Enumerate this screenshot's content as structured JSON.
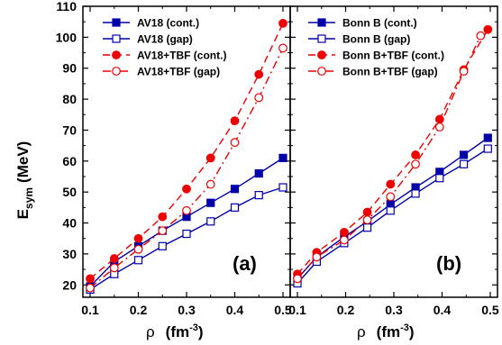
{
  "chart_data": [
    {
      "type": "line",
      "panel_tag": "(a)",
      "ylabel_main": "E",
      "ylabel_sub": "sym",
      "ylabel_unit": "(MeV)",
      "xlabel_symbol": "ρ",
      "xlabel_unit": "(fm",
      "xlabel_exp": "-3",
      "xlabel_close": ")",
      "xlim": [
        0.085,
        0.515
      ],
      "ylim": [
        16,
        110
      ],
      "xticks": [
        0.1,
        0.2,
        0.3,
        0.4,
        0.5
      ],
      "xtick_labels": [
        "0.1",
        "0.2",
        "0.3",
        "0.4",
        "0.5"
      ],
      "yticks": [
        20,
        30,
        40,
        50,
        60,
        70,
        80,
        90,
        100,
        110
      ],
      "ytick_labels": [
        "20",
        "30",
        "40",
        "50",
        "60",
        "70",
        "80",
        "90",
        "100",
        "110"
      ],
      "legend_position": "top-left",
      "series": [
        {
          "name": "AV18 (cont.)",
          "color": "#0000aa",
          "marker": "square-filled",
          "dash": "solid",
          "x": [
            0.1,
            0.15,
            0.2,
            0.25,
            0.3,
            0.35,
            0.4,
            0.45,
            0.5
          ],
          "y": [
            19.5,
            27.5,
            32.5,
            37.5,
            42,
            46.5,
            51,
            56,
            61
          ]
        },
        {
          "name": "AV18 (gap)",
          "color": "#0000aa",
          "marker": "square-open",
          "dash": "solid",
          "x": [
            0.1,
            0.15,
            0.2,
            0.25,
            0.3,
            0.35,
            0.4,
            0.45,
            0.5
          ],
          "y": [
            18.5,
            23.5,
            28,
            32.5,
            36.5,
            40.5,
            45,
            49,
            51.5
          ]
        },
        {
          "name": "AV18+TBF (cont.)",
          "color": "#ee0000",
          "marker": "circle-filled",
          "dash": "dash",
          "x": [
            0.1,
            0.15,
            0.2,
            0.25,
            0.3,
            0.35,
            0.4,
            0.45,
            0.5
          ],
          "y": [
            22,
            28.5,
            35,
            42,
            51,
            61,
            73,
            88,
            104.5
          ]
        },
        {
          "name": "AV18+TBF (gap)",
          "color": "#ee0000",
          "marker": "circle-open",
          "dash": "dashdot",
          "x": [
            0.1,
            0.15,
            0.2,
            0.25,
            0.3,
            0.35,
            0.4,
            0.45,
            0.5
          ],
          "y": [
            19,
            25.5,
            31.5,
            37.5,
            44,
            52.5,
            66,
            80.5,
            96.5
          ]
        }
      ]
    },
    {
      "type": "line",
      "panel_tag": "(b)",
      "xlabel_symbol": "ρ",
      "xlabel_unit": "(fm",
      "xlabel_exp": "-3",
      "xlabel_close": ")",
      "xlim": [
        0.085,
        0.515
      ],
      "ylim": [
        16,
        110
      ],
      "xticks": [
        0.1,
        0.2,
        0.3,
        0.4,
        0.5
      ],
      "xtick_labels": [
        "0.1",
        "0.2",
        "0.3",
        "0.4",
        "0.5"
      ],
      "yticks": [
        20,
        30,
        40,
        50,
        60,
        70,
        80,
        90,
        100,
        110
      ],
      "legend_position": "top-left",
      "series": [
        {
          "name": "Bonn B (cont.)",
          "color": "#0000aa",
          "marker": "square-filled",
          "dash": "solid",
          "x": [
            0.1,
            0.14,
            0.197,
            0.245,
            0.293,
            0.345,
            0.395,
            0.445,
            0.495
          ],
          "y": [
            22,
            29,
            35.5,
            40.5,
            46,
            51.5,
            56.5,
            62,
            67.5
          ]
        },
        {
          "name": "Bonn B (gap)",
          "color": "#0000aa",
          "marker": "square-open",
          "dash": "solid",
          "x": [
            0.1,
            0.14,
            0.197,
            0.245,
            0.293,
            0.345,
            0.395,
            0.445,
            0.495
          ],
          "y": [
            20.5,
            27.5,
            33.5,
            38.5,
            44,
            49.5,
            54.5,
            59,
            64
          ]
        },
        {
          "name": "Bonn B+TBF (cont.)",
          "color": "#ee0000",
          "marker": "circle-filled",
          "dash": "dash",
          "x": [
            0.1,
            0.14,
            0.197,
            0.245,
            0.293,
            0.345,
            0.395,
            0.445,
            0.495
          ],
          "y": [
            23.5,
            30.5,
            37,
            43.5,
            52.5,
            62,
            73.5,
            89.5,
            102.5
          ]
        },
        {
          "name": "Bonn B+TBF (gap)",
          "color": "#ee0000",
          "marker": "circle-open",
          "dash": "dashdot",
          "x": [
            0.1,
            0.14,
            0.197,
            0.245,
            0.293,
            0.345,
            0.395,
            0.445,
            0.48
          ],
          "y": [
            22,
            29,
            34.5,
            41,
            48.5,
            59,
            71,
            89,
            100.5
          ]
        }
      ]
    }
  ]
}
